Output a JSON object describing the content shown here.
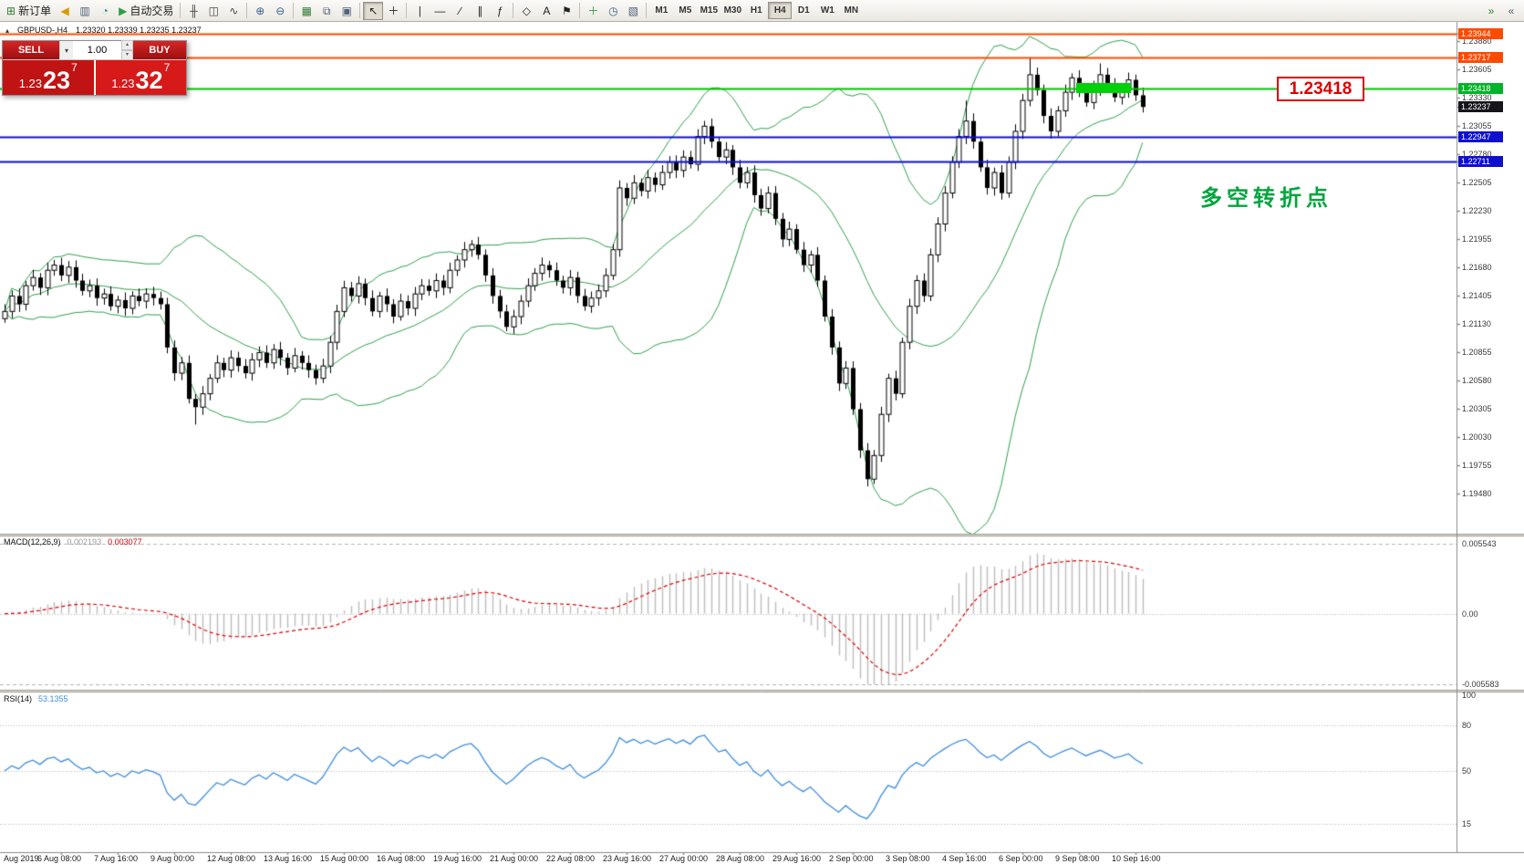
{
  "toolbar": {
    "buttons": [
      {
        "name": "new-order",
        "glyph": "⊞",
        "glyph_color": "#2f7d32",
        "label": "新订单"
      },
      {
        "name": "alerts-horn",
        "glyph": "◀",
        "glyph_color": "#d59a00"
      },
      {
        "name": "profiles",
        "glyph": "▥",
        "glyph_color": "#51617a"
      },
      {
        "name": "data-window",
        "glyph": "◔",
        "glyph_color": "#2e7f8f"
      },
      {
        "name": "autotrading",
        "glyph": "▶",
        "glyph_color": "#2f9e44",
        "label": "自动交易"
      },
      {
        "sep": true
      },
      {
        "name": "bar-chart-mode",
        "glyph": "╫",
        "glyph_color": "#444"
      },
      {
        "name": "candle-chart-mode",
        "glyph": "◫",
        "glyph_color": "#444"
      },
      {
        "name": "line-chart-mode",
        "glyph": "∿",
        "glyph_color": "#444"
      },
      {
        "sep": true
      },
      {
        "name": "zoom-in",
        "glyph": "⊕",
        "glyph_color": "#3a5f8a"
      },
      {
        "name": "zoom-out",
        "glyph": "⊖",
        "glyph_color": "#3a5f8a"
      },
      {
        "sep": true
      },
      {
        "name": "strategy-tester",
        "glyph": "▦",
        "glyph_color": "#2f7d32"
      },
      {
        "name": "new-chart",
        "glyph": "⧉",
        "glyph_color": "#51617a"
      },
      {
        "name": "tile-windows",
        "glyph": "▣",
        "glyph_color": "#51617a"
      },
      {
        "sep": true
      },
      {
        "name": "cursor",
        "glyph": "↖",
        "glyph_color": "#222",
        "active": true
      },
      {
        "name": "crosshair",
        "glyph": "＋",
        "glyph_color": "#222"
      },
      {
        "sep": true
      },
      {
        "name": "vertical-line-tool",
        "glyph": "∣",
        "glyph_color": "#222"
      },
      {
        "name": "horizontal-line-tool",
        "glyph": "―",
        "glyph_color": "#222"
      },
      {
        "name": "trendline-tool",
        "glyph": "∕",
        "glyph_color": "#222"
      },
      {
        "name": "channel-tool",
        "glyph": "∥",
        "glyph_color": "#222"
      },
      {
        "name": "fibonacci-tool",
        "glyph": "ƒ",
        "glyph_color": "#222"
      },
      {
        "sep": true
      },
      {
        "name": "shapes-tool",
        "glyph": "◇",
        "glyph_color": "#222"
      },
      {
        "name": "text-tool",
        "glyph": "A",
        "glyph_color": "#222"
      },
      {
        "name": "arrow-tool",
        "glyph": "⚑",
        "glyph_color": "#222"
      },
      {
        "sep": true
      },
      {
        "name": "indicators",
        "glyph": "＋",
        "glyph_color": "#2f9e44"
      },
      {
        "name": "periods",
        "glyph": "◷",
        "glyph_color": "#3a5f8a"
      },
      {
        "name": "templates",
        "glyph": "▧",
        "glyph_color": "#51617a"
      },
      {
        "sep": true
      }
    ],
    "timeframes": [
      "M1",
      "M5",
      "M15",
      "M30",
      "H1",
      "H4",
      "D1",
      "W1",
      "MN"
    ],
    "active_timeframe": "H4",
    "corner_buttons": [
      {
        "name": "chart-shift",
        "glyph": "»",
        "glyph_color": "#2f7d32"
      },
      {
        "name": "auto-scroll",
        "glyph": "«",
        "glyph_color": "#51617a"
      }
    ]
  },
  "trade_panel": {
    "sell_label": "SELL",
    "buy_label": "BUY",
    "volume": "1.00",
    "dropdown_glyph": "▾",
    "spin_up_glyph": "▴",
    "spin_down_glyph": "▾",
    "sell_price_prefix": "1.23",
    "sell_price_pips": "23",
    "sell_price_pipette": "7",
    "buy_price_prefix": "1.23",
    "buy_price_pips": "32",
    "buy_price_pipette": "7"
  },
  "chart": {
    "collapse_glyph": "▴",
    "symbol_header": "GBPUSD-,H4",
    "ohlc_values": "1.23320  1.23339  1.23235  1.23237",
    "annotation": "多空转折点",
    "annotation_color": "#00a63c",
    "callout_price": "1.23418",
    "callout_color": "#dd0000",
    "hlines": [
      {
        "price": 1.23944,
        "color": "#ff4a00",
        "width": 2
      },
      {
        "price": 1.23717,
        "color": "#ff4a00",
        "width": 2
      },
      {
        "price": 1.23418,
        "color": "#00c400",
        "width": 2
      },
      {
        "price": 1.22947,
        "color": "#0f0fd0",
        "width": 2
      },
      {
        "price": 1.22711,
        "color": "#0f0fd0",
        "width": 2
      }
    ],
    "axis_badges": [
      {
        "label": "1.23944",
        "price": 1.23944,
        "color": "#ff4a00"
      },
      {
        "label": "1.23717",
        "price": 1.23717,
        "color": "#ff4a00"
      },
      {
        "label": "1.23418",
        "price": 1.23418,
        "color": "#00b42a"
      },
      {
        "label": "1.23237",
        "price": 1.23237,
        "color": "#15151a"
      },
      {
        "label": "1.22947",
        "price": 1.22947,
        "color": "#0f0fd0"
      },
      {
        "label": "1.22711",
        "price": 1.22711,
        "color": "#0f0fd0"
      }
    ],
    "axis_ticks": [
      "1.23880",
      "1.23605",
      "1.23330",
      "1.23055",
      "1.22780",
      "1.22505",
      "1.22230",
      "1.21955",
      "1.21680",
      "1.21405",
      "1.21130",
      "1.20855",
      "1.20580",
      "1.20305",
      "1.20030",
      "1.19755",
      "1.19480"
    ],
    "highlight_rect": {
      "from_index": 152,
      "to_index": 159,
      "price_top": 1.2347,
      "price_bottom": 1.2337,
      "color": "#00d20a"
    }
  },
  "chart_data": {
    "type": "candlestick",
    "symbol": "GBPUSD",
    "timeframe": "H4",
    "price_top": 1.24028,
    "price_bottom": 1.1909,
    "first_open": 1.2118,
    "closes": [
      1.2125,
      1.214,
      1.2132,
      1.215,
      1.2158,
      1.2148,
      1.2165,
      1.217,
      1.216,
      1.2168,
      1.2155,
      1.2145,
      1.215,
      1.2138,
      1.2142,
      1.213,
      1.2136,
      1.2128,
      1.214,
      1.2135,
      1.2142,
      1.2138,
      1.2132,
      1.209,
      1.2065,
      1.2075,
      1.204,
      1.2032,
      1.2045,
      1.206,
      1.2075,
      1.2068,
      1.208,
      1.2072,
      1.2065,
      1.2078,
      1.2085,
      1.2075,
      1.2088,
      1.208,
      1.207,
      1.2082,
      1.2075,
      1.2068,
      1.206,
      1.2072,
      1.2095,
      1.2125,
      1.2148,
      1.214,
      1.2152,
      1.2138,
      1.2125,
      1.214,
      1.2132,
      1.212,
      1.2135,
      1.2128,
      1.2142,
      1.215,
      1.2145,
      1.2155,
      1.2148,
      1.2165,
      1.2175,
      1.2185,
      1.219,
      1.218,
      1.216,
      1.214,
      1.2125,
      1.211,
      1.212,
      1.2135,
      1.215,
      1.2162,
      1.217,
      1.2165,
      1.2155,
      1.2148,
      1.2158,
      1.214,
      1.213,
      1.2138,
      1.2145,
      1.216,
      1.2185,
      1.2245,
      1.2235,
      1.225,
      1.2242,
      1.2255,
      1.2248,
      1.226,
      1.227,
      1.2262,
      1.2275,
      1.2268,
      1.2295,
      1.2305,
      1.229,
      1.2275,
      1.2282,
      1.2265,
      1.225,
      1.226,
      1.2238,
      1.2225,
      1.224,
      1.2215,
      1.2195,
      1.2205,
      1.2185,
      1.217,
      1.218,
      1.2155,
      1.212,
      1.209,
      1.2055,
      1.207,
      1.203,
      1.199,
      1.1962,
      1.1985,
      1.2025,
      1.206,
      1.2045,
      1.2095,
      1.213,
      1.2155,
      1.214,
      1.218,
      1.221,
      1.224,
      1.227,
      1.2295,
      1.231,
      1.229,
      1.2265,
      1.2245,
      1.226,
      1.224,
      1.227,
      1.23,
      1.233,
      1.2355,
      1.234,
      1.2315,
      1.23,
      1.232,
      1.2338,
      1.2352,
      1.234,
      1.2328,
      1.2342,
      1.2355,
      1.2345,
      1.2333,
      1.234,
      1.235,
      1.2335,
      1.23237
    ],
    "wick_overrides": {
      "27": {
        "low": 1.2015
      },
      "87": {
        "high": 1.2252
      },
      "122": {
        "low": 1.1955
      },
      "136": {
        "high": 1.233
      },
      "145": {
        "high": 1.2372
      },
      "155": {
        "high": 1.2366
      }
    },
    "bollinger": {
      "period": 20,
      "deviation": 2,
      "color": "#2fa14b"
    },
    "candle_up_color": "#ffffff",
    "candle_down_color": "#000000",
    "candle_outline_color": "#000000",
    "time_labels": [
      "Aug 2019",
      "6 Aug 08:00",
      "7 Aug 16:00",
      "9 Aug 00:00",
      "12 Aug 08:00",
      "13 Aug 16:00",
      "15 Aug 00:00",
      "16 Aug 08:00",
      "19 Aug 16:00",
      "21 Aug 00:00",
      "22 Aug 08:00",
      "23 Aug 16:00",
      "27 Aug 00:00",
      "28 Aug 08:00",
      "29 Aug 16:00",
      "2 Sep 00:00",
      "3 Sep 08:00",
      "4 Sep 16:00",
      "6 Sep 00:00",
      "9 Sep 08:00",
      "10 Sep 16:00"
    ],
    "macd": {
      "label": "MACD(12,26,9)",
      "value": "0.002193",
      "signal_value": "0.003077",
      "scale_max": 0.005543,
      "scale_min": -0.005583,
      "axis": [
        {
          "label": "0.005543",
          "value": 0.005543
        },
        {
          "label": "0.00",
          "value": 0
        },
        {
          "label": "-0.005583",
          "value": -0.005583
        }
      ],
      "hist_color": "#bdbdbd",
      "signal_color": "#e00000"
    },
    "rsi": {
      "label": "RSI(14)",
      "value": "53.1355",
      "period": 14,
      "axis": [
        {
          "label": "100",
          "value": 100
        },
        {
          "label": "80",
          "value": 80
        },
        {
          "label": "50",
          "value": 50
        },
        {
          "label": "15",
          "value": 15
        }
      ],
      "levels": [
        80,
        50,
        15
      ],
      "line_color": "#3e8ede"
    }
  }
}
